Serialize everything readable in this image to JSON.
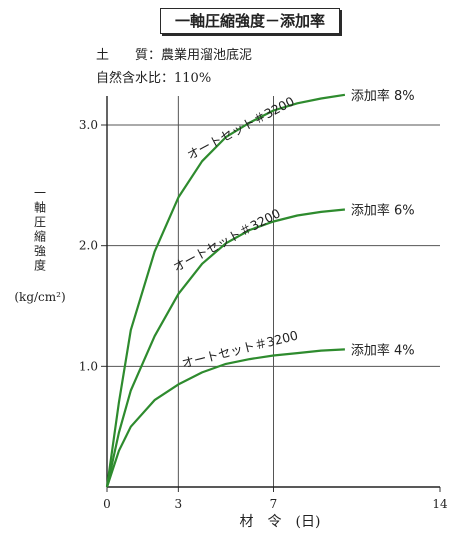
{
  "header": {
    "title": "一軸圧縮強度－添加率",
    "soil_label": "土　　質：",
    "soil_value": "農業用溜池底泥",
    "water_label": "自然含水比：",
    "water_value": "110%"
  },
  "chart_data": {
    "type": "line",
    "xlabel": "材　令　(日)",
    "ylabel": "一軸圧縮強度",
    "yunit": "(kg/cm²)",
    "xlim": [
      0,
      14
    ],
    "ylim": [
      0,
      3.0
    ],
    "x_ticks": [
      "0",
      "3",
      "7",
      "14"
    ],
    "y_ticks": [
      "1.0",
      "2.0",
      "3.0"
    ],
    "grid": true,
    "series": [
      {
        "name": "添加率 8%",
        "curve_label": "オートセット＃3200",
        "color": "#2e8b2e",
        "x": [
          0,
          0.5,
          1,
          2,
          3,
          4,
          5,
          6,
          7,
          8,
          9,
          10
        ],
        "y": [
          0,
          0.7,
          1.3,
          1.95,
          2.4,
          2.7,
          2.9,
          3.02,
          3.12,
          3.18,
          3.22,
          3.25
        ]
      },
      {
        "name": "添加率 6%",
        "curve_label": "オートセット＃3200",
        "color": "#2e8b2e",
        "x": [
          0,
          0.5,
          1,
          2,
          3,
          4,
          5,
          6,
          7,
          8,
          9,
          10
        ],
        "y": [
          0,
          0.45,
          0.8,
          1.25,
          1.6,
          1.85,
          2.02,
          2.13,
          2.2,
          2.25,
          2.28,
          2.3
        ]
      },
      {
        "name": "添加率 4%",
        "curve_label": "オートセット＃3200",
        "color": "#2e8b2e",
        "x": [
          0,
          0.5,
          1,
          2,
          3,
          4,
          5,
          6,
          7,
          8,
          9,
          10
        ],
        "y": [
          0,
          0.3,
          0.5,
          0.72,
          0.85,
          0.95,
          1.02,
          1.06,
          1.09,
          1.11,
          1.13,
          1.14
        ]
      }
    ]
  }
}
